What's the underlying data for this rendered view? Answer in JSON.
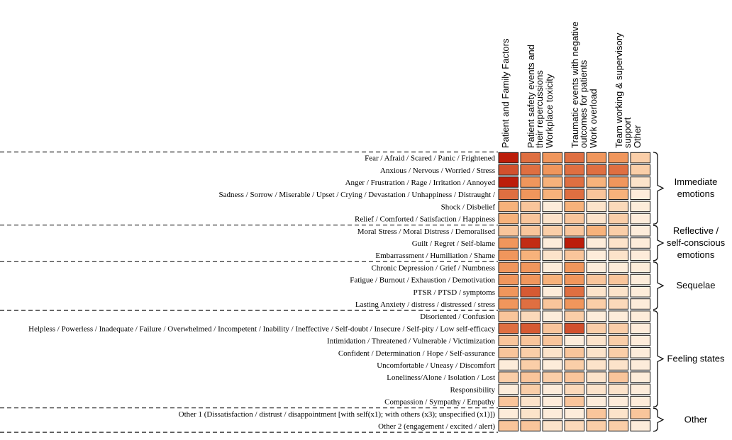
{
  "chart_data": {
    "type": "heatmap",
    "columns": [
      [
        "Patient and Family Factors"
      ],
      [
        "Patient safety events and",
        "their repercussions"
      ],
      [
        "Workplace toxicity"
      ],
      [
        "Traumatic events with negative",
        "outcomes for patients"
      ],
      [
        "Work overload"
      ],
      [
        "Team working & supervisory",
        "support"
      ],
      [
        "Other"
      ]
    ],
    "rows": [
      "Fear / Afraid / Scared / Panic / Frightened",
      "Anxious / Nervous / Worried / Stress",
      "Anger / Frustration / Rage / Irritation / Annoyed",
      "Sadness / Sorrow / Miserable / Upset / Crying / Devastation / Unhappiness / Distraught /",
      "Shock / Disbelief",
      "Relief / Comforted / Satisfaction / Happiness",
      "Moral Stress / Moral Distress / Demoralised",
      "Guilt / Regret / Self-blame",
      "Embarrassment / Humiliation / Shame",
      "Chronic Depression / Grief / Numbness",
      "Fatigue / Burnout / Exhaustion / Demotivation",
      "PTSR / PTSD / symptoms",
      "Lasting Anxiety / distress / distressed / stress",
      "Disoriented / Confusion",
      "Helpless / Powerless / Inadequate / Failure / Overwhelmed / Incompetent / Inability / Ineffective / Self-doubt / Insecure / Self-pity / Low self-efficacy",
      "Intimidation / Threatened / Vulnerable / Victimization",
      "Confident / Determination / Hope / Self-assurance",
      "Uncomfortable / Uneasy / Discomfort",
      "Loneliness/Alone / Isolation / Lost",
      "Responsibility",
      "Compassion / Sympathy / Empathy",
      "Other 1 (Dissatisfaction / distrust / disappointment [with self(x1); with others (x3); unspecified (x1)])",
      "Other 2 (engagement / excited / alert)"
    ],
    "values": [
      [
        0.95,
        0.68,
        0.55,
        0.68,
        0.55,
        0.55,
        0.25
      ],
      [
        0.78,
        0.68,
        0.55,
        0.68,
        0.68,
        0.68,
        0.25
      ],
      [
        0.95,
        0.55,
        0.42,
        0.68,
        0.42,
        0.55,
        0.12
      ],
      [
        0.68,
        0.55,
        0.42,
        0.68,
        0.3,
        0.42,
        0.06
      ],
      [
        0.42,
        0.3,
        0.06,
        0.42,
        0.12,
        0.18,
        0.06
      ],
      [
        0.42,
        0.3,
        0.12,
        0.3,
        0.12,
        0.25,
        0.06
      ],
      [
        0.3,
        0.3,
        0.25,
        0.3,
        0.42,
        0.25,
        0.06
      ],
      [
        0.55,
        0.9,
        0.06,
        0.95,
        0.06,
        0.12,
        0.06
      ],
      [
        0.55,
        0.42,
        0.12,
        0.3,
        0.06,
        0.12,
        0.06
      ],
      [
        0.55,
        0.55,
        0.06,
        0.55,
        0.06,
        0.06,
        0.06
      ],
      [
        0.55,
        0.55,
        0.42,
        0.55,
        0.3,
        0.3,
        0.06
      ],
      [
        0.55,
        0.75,
        0.06,
        0.68,
        0.12,
        0.12,
        0.06
      ],
      [
        0.55,
        0.68,
        0.3,
        0.55,
        0.25,
        0.18,
        0.06
      ],
      [
        0.3,
        0.18,
        0.06,
        0.25,
        0.06,
        0.06,
        0.06
      ],
      [
        0.68,
        0.75,
        0.3,
        0.78,
        0.25,
        0.25,
        0.06
      ],
      [
        0.3,
        0.3,
        0.3,
        0.06,
        0.12,
        0.25,
        0.06
      ],
      [
        0.3,
        0.25,
        0.12,
        0.3,
        0.12,
        0.25,
        0.06
      ],
      [
        0.06,
        0.25,
        0.06,
        0.25,
        0.12,
        0.12,
        0.06
      ],
      [
        0.25,
        0.3,
        0.25,
        0.3,
        0.12,
        0.3,
        0.06
      ],
      [
        0.06,
        0.25,
        0.06,
        0.18,
        0.12,
        0.12,
        0.06
      ],
      [
        0.3,
        0.12,
        0.06,
        0.3,
        0.06,
        0.06,
        0.06
      ],
      [
        0.06,
        0.12,
        0.06,
        0.06,
        0.3,
        0.12,
        0.3
      ],
      [
        0.3,
        0.3,
        0.12,
        0.18,
        0.25,
        0.25,
        0.06
      ]
    ],
    "value_scale": "relative frequency (0 = none, 1 = highest)",
    "color_low": "#fef6ea",
    "color_mid": "#f6a566",
    "color_high": "#b50e00",
    "groups": [
      {
        "label": [
          "Immediate",
          "emotions"
        ],
        "start": 0,
        "end": 5
      },
      {
        "label": [
          "Reflective /",
          "self-conscious",
          "emotions"
        ],
        "start": 6,
        "end": 8
      },
      {
        "label": [
          "Sequelae"
        ],
        "start": 9,
        "end": 12
      },
      {
        "label": [
          "Feeling states"
        ],
        "start": 13,
        "end": 20
      },
      {
        "label": [
          "Other"
        ],
        "start": 21,
        "end": 22
      }
    ]
  }
}
